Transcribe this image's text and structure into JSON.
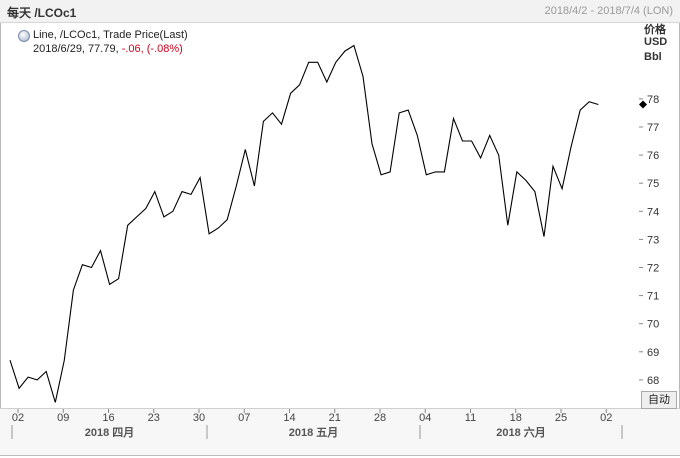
{
  "header": {
    "title": "每天 /LCOc1",
    "range": "2018/4/2 - 2018/7/4 (LON)"
  },
  "legend": {
    "line1": "Line, /LCOc1, Trade Price(Last)",
    "date_value": "2018/6/29, 77.79,",
    "change": "-.06, (-.08%)"
  },
  "yaxis": {
    "unit_line1": "价格",
    "unit_line2": "USD",
    "unit_line3": "Bbl"
  },
  "auto_button": "自动",
  "colors": {
    "line": "#000000",
    "negative": "#d0021b",
    "tick": "#333333"
  },
  "chart_data": {
    "type": "line",
    "title": "每天 /LCOc1",
    "series": [
      {
        "name": "Line, /LCOc1, Trade Price(Last)",
        "values": [
          68.7,
          67.7,
          68.1,
          68.0,
          68.3,
          67.2,
          68.7,
          71.2,
          72.1,
          72.0,
          72.6,
          71.4,
          71.6,
          73.5,
          73.8,
          74.1,
          74.7,
          73.8,
          74.0,
          74.7,
          74.6,
          75.2,
          73.2,
          73.4,
          73.7,
          74.9,
          76.2,
          74.9,
          77.2,
          77.5,
          77.1,
          78.2,
          78.5,
          79.3,
          79.3,
          78.6,
          79.3,
          79.7,
          79.9,
          78.8,
          76.4,
          75.3,
          75.4,
          77.5,
          77.6,
          76.7,
          75.3,
          75.4,
          75.4,
          77.3,
          76.5,
          76.5,
          75.9,
          76.7,
          76.0,
          73.5,
          75.4,
          75.1,
          74.7,
          73.1,
          75.6,
          74.8,
          76.3,
          77.6,
          77.9,
          77.8
        ]
      }
    ],
    "ylim": [
      67,
      80.7
    ],
    "yticks": [
      "68",
      "69",
      "70",
      "71",
      "72",
      "73",
      "74",
      "75",
      "76",
      "77",
      "78"
    ],
    "xticks": [
      "02",
      "09",
      "16",
      "23",
      "30",
      "07",
      "14",
      "21",
      "28",
      "04",
      "11",
      "18",
      "25",
      "02"
    ],
    "months": [
      "2018 四月",
      "2018 五月",
      "2018 六月"
    ],
    "last_value_marker": 77.8
  }
}
